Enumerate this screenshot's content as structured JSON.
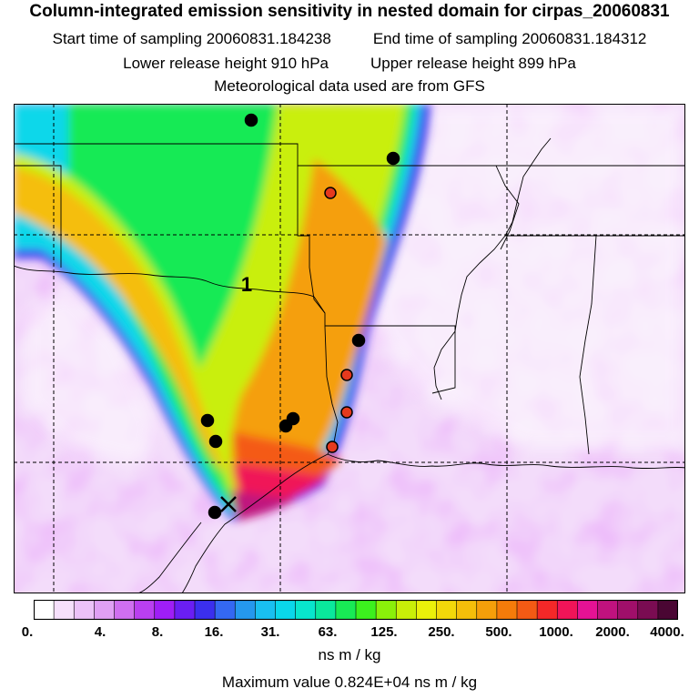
{
  "header": {
    "title": "Column-integrated emission sensitivity in nested domain for cirpas_20060831",
    "start_label": "Start time of sampling 20060831.184238",
    "end_label": "End time of sampling 20060831.184312",
    "lower_label": "Lower release height  910 hPa",
    "upper_label": "Upper release height  899 hPa",
    "met_label": "Meteorological data used are from GFS"
  },
  "map": {
    "contour_label": "1",
    "markers": [
      {
        "name": "black-marker-1",
        "color": "#000000"
      },
      {
        "name": "black-marker-2",
        "color": "#000000"
      },
      {
        "name": "red-marker-1",
        "color": "#e53a1e"
      },
      {
        "name": "black-marker-3",
        "color": "#000000"
      },
      {
        "name": "red-marker-2",
        "color": "#e53a1e"
      },
      {
        "name": "red-marker-3",
        "color": "#e53a1e"
      },
      {
        "name": "red-marker-4",
        "color": "#e53a1e"
      },
      {
        "name": "black-marker-4",
        "color": "#000000"
      },
      {
        "name": "black-marker-5",
        "color": "#000000"
      },
      {
        "name": "black-marker-6",
        "color": "#000000"
      },
      {
        "name": "black-marker-7",
        "color": "#000000"
      },
      {
        "name": "black-marker-8",
        "color": "#000000"
      }
    ]
  },
  "legend": {
    "colors": [
      "#ffffff",
      "#f6e0fb",
      "#ecc2f8",
      "#e0a0f4",
      "#cf6ff0",
      "#b93ff0",
      "#9f1ef6",
      "#6a1ef3",
      "#3b2fee",
      "#3468f2",
      "#2598ee",
      "#19bff0",
      "#0ad7ea",
      "#08e6cc",
      "#0ae89c",
      "#18ea55",
      "#3cf01e",
      "#8af00a",
      "#c9ef08",
      "#eaf00a",
      "#f2d80a",
      "#f5be0a",
      "#f59f0a",
      "#f57b0a",
      "#f45a14",
      "#f42828",
      "#f01458",
      "#e51294",
      "#c0127e",
      "#a00f6a",
      "#7a0c52",
      "#4a0633"
    ],
    "ticks": [
      "0.",
      "4.",
      "8.",
      "16.",
      "31.",
      "63.",
      "125.",
      "250.",
      "500.",
      "1000.",
      "2000.",
      "4000."
    ],
    "units": "ns m / kg",
    "max_value": "Maximum value  0.824E+04 ns m / kg"
  }
}
